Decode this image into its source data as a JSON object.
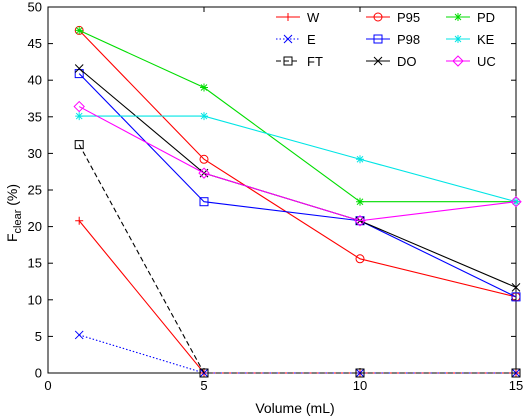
{
  "chart_data": {
    "type": "line",
    "x": [
      1,
      5,
      10,
      15
    ],
    "xlabel": "Volume (mL)",
    "ylabel": {
      "main": "F",
      "sub": "clear",
      "unit": " (%)"
    },
    "xlim": [
      0,
      15
    ],
    "ylim": [
      0,
      50
    ],
    "xticks": [
      0,
      5,
      10,
      15
    ],
    "yticks": [
      0,
      5,
      10,
      15,
      20,
      25,
      30,
      35,
      40,
      45,
      50
    ],
    "grid": false,
    "legend_position": "top-right",
    "legend_columns": 3,
    "series": [
      {
        "name": "W",
        "color": "#ff0000",
        "marker": "plus",
        "dash": "solid",
        "values": [
          20.8,
          0,
          0,
          0
        ]
      },
      {
        "name": "E",
        "color": "#0000ff",
        "marker": "x",
        "dash": "dotted",
        "values": [
          5.2,
          0,
          0,
          0
        ]
      },
      {
        "name": "FT",
        "color": "#000000",
        "marker": "square",
        "dash": "dashed",
        "values": [
          31.2,
          0,
          0,
          0
        ]
      },
      {
        "name": "P95",
        "color": "#ff0000",
        "marker": "circle",
        "dash": "solid",
        "values": [
          46.8,
          29.2,
          15.6,
          10.4
        ]
      },
      {
        "name": "P98",
        "color": "#0000ff",
        "marker": "square",
        "dash": "solid",
        "values": [
          40.9,
          23.4,
          20.8,
          10.4
        ]
      },
      {
        "name": "DO",
        "color": "#000000",
        "marker": "x",
        "dash": "solid",
        "values": [
          41.6,
          27.3,
          20.8,
          11.7
        ]
      },
      {
        "name": "PD",
        "color": "#00dd00",
        "marker": "star",
        "dash": "solid",
        "values": [
          46.8,
          39.0,
          23.4,
          23.4
        ]
      },
      {
        "name": "KE",
        "color": "#00e5e5",
        "marker": "star",
        "dash": "solid",
        "values": [
          35.1,
          35.1,
          29.2,
          23.4
        ]
      },
      {
        "name": "UC",
        "color": "#ff00ff",
        "marker": "diamond",
        "dash": "solid",
        "values": [
          36.4,
          27.3,
          20.8,
          23.4
        ]
      }
    ]
  }
}
